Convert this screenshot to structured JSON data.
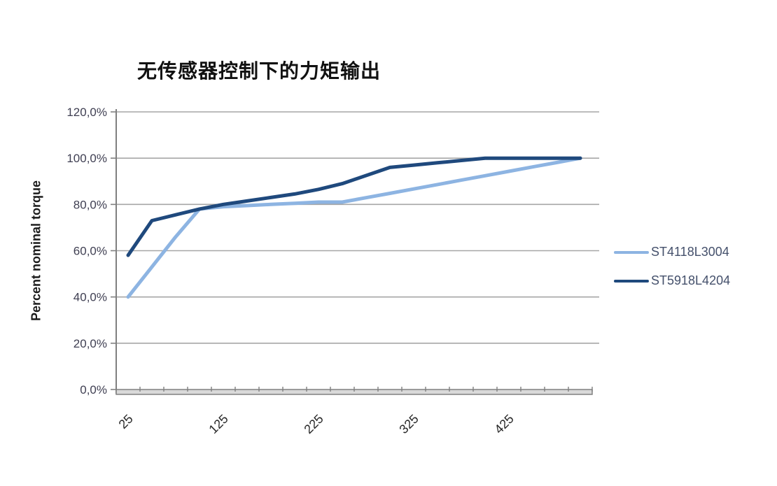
{
  "title": "无传感器控制下的力矩输出",
  "colors": {
    "series_light": "#8db4e2",
    "series_dark": "#1f497d",
    "gridline": "#a6a6a6",
    "axis_line": "#808080",
    "axis_bar_fill": "#d9d9d9",
    "tick_label": "#3f3f52",
    "legend_text": "#44506b"
  },
  "chart_data": {
    "type": "line",
    "title": "无传感器控制下的力矩输出",
    "xlabel": "",
    "ylabel": "Percent nominal torque",
    "ylim": [
      0,
      120
    ],
    "grid": true,
    "legend_position": "right",
    "y_tick_labels": [
      "0,0%",
      "20,0%",
      "40,0%",
      "60,0%",
      "80,0%",
      "100,0%",
      "120,0%"
    ],
    "y_tick_values": [
      0,
      20,
      40,
      60,
      80,
      100,
      120
    ],
    "x": [
      25,
      50,
      75,
      100,
      125,
      150,
      175,
      200,
      225,
      250,
      275,
      300,
      325,
      350,
      375,
      400,
      425,
      450,
      475,
      500
    ],
    "x_tick_labels": [
      "25",
      "125",
      "225",
      "325",
      "425"
    ],
    "series": [
      {
        "name": "ST4118L3004",
        "color": "#8db4e2",
        "values": [
          40,
          53,
          66,
          78,
          79,
          79.5,
          80,
          80.5,
          81,
          81,
          82.9,
          84.8,
          86.7,
          88.6,
          90.5,
          92.4,
          94.3,
          96.2,
          98.1,
          100
        ]
      },
      {
        "name": "ST5918L4204",
        "color": "#1f497d",
        "values": [
          58,
          73,
          75.5,
          78,
          80,
          81.5,
          83,
          84.5,
          86.5,
          89,
          92.5,
          96,
          97,
          98,
          99,
          100,
          100,
          100,
          100,
          100
        ]
      }
    ]
  }
}
